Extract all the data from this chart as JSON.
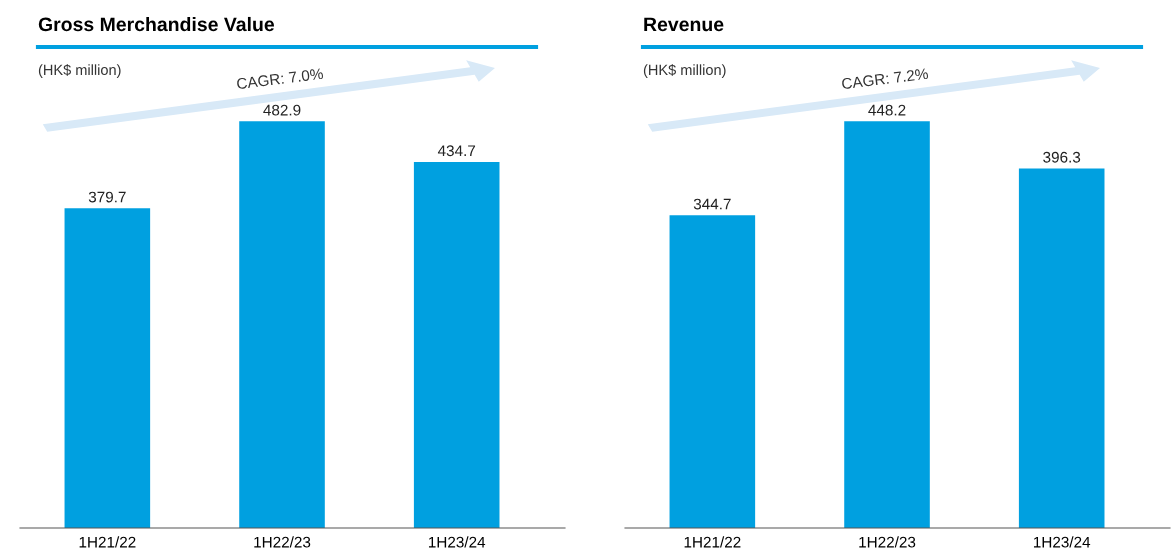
{
  "chart_data": [
    {
      "type": "bar",
      "title": "Gross Merchandise Value",
      "subtitle": "(HK$ million)",
      "categories": [
        "1H21/22",
        "1H22/23",
        "1H23/24"
      ],
      "values": [
        379.7,
        482.9,
        434.7
      ],
      "color": "#00a0e0",
      "data_labels": true,
      "annotations": [
        "CAGR: 7.0%"
      ]
    },
    {
      "type": "bar",
      "title": "Revenue",
      "subtitle": "(HK$ million)",
      "categories": [
        "1H21/22",
        "1H22/23",
        "1H23/24"
      ],
      "values": [
        344.7,
        448.2,
        396.3
      ],
      "color": "#00a0e0",
      "data_labels": true,
      "annotations": [
        "CAGR: 7.2%"
      ]
    }
  ]
}
